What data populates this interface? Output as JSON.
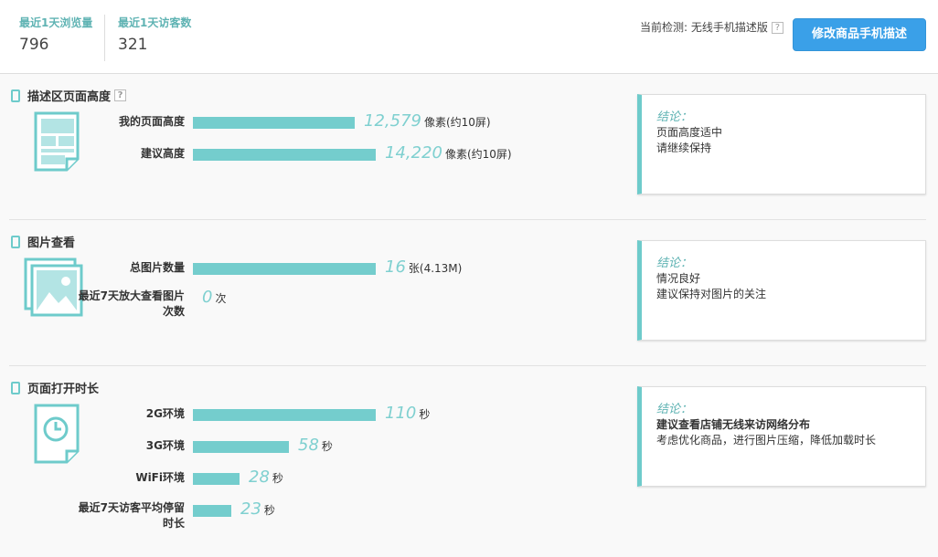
{
  "header": {
    "stats": [
      {
        "label": "最近1天浏览量",
        "value": "796"
      },
      {
        "label": "最近1天访客数",
        "value": "321"
      }
    ],
    "detect_label": "当前检测: 无线手机描述版",
    "help": "?",
    "edit_button": "修改商品手机描述"
  },
  "colors": {
    "accent": "#74cdcd",
    "button": "#3aa0e8"
  },
  "sections": [
    {
      "title": "描述区页面高度",
      "help": "?",
      "icon": "page-layout-icon",
      "max": 14220,
      "rows": [
        {
          "label": "我的页面高度",
          "value": 12579,
          "display": "12,579",
          "unit": "像素(约10屏)"
        },
        {
          "label": "建议高度",
          "value": 14220,
          "display": "14,220",
          "unit": "像素(约10屏)"
        }
      ],
      "conclusion": {
        "heading": "结论：",
        "lines": [
          "页面高度适中",
          "请继续保持"
        ]
      }
    },
    {
      "title": "图片查看",
      "icon": "image-icon",
      "max": 16,
      "rows": [
        {
          "label": "总图片数量",
          "value": 16,
          "display": "16",
          "unit": "张(4.13M)"
        },
        {
          "label": "最近7天放大查看图片次数",
          "value": 0,
          "display": "0",
          "unit": "次"
        }
      ],
      "conclusion": {
        "heading": "结论：",
        "lines": [
          "情况良好",
          "建议保持对图片的关注"
        ]
      }
    },
    {
      "title": "页面打开时长",
      "icon": "clock-page-icon",
      "max": 110,
      "rows": [
        {
          "label": "2G环境",
          "value": 110,
          "display": "110",
          "unit": "秒"
        },
        {
          "label": "3G环境",
          "value": 58,
          "display": "58",
          "unit": "秒"
        },
        {
          "label": "WiFi环境",
          "value": 28,
          "display": "28",
          "unit": "秒"
        },
        {
          "label": "最近7天访客平均停留时长",
          "value": 23,
          "display": "23",
          "unit": "秒"
        }
      ],
      "conclusion": {
        "heading": "结论：",
        "lines": [
          "建议查看店铺无线来访网络分布",
          "考虑优化商品，进行图片压缩，降低加载时长"
        ],
        "bold_first": true
      }
    }
  ]
}
